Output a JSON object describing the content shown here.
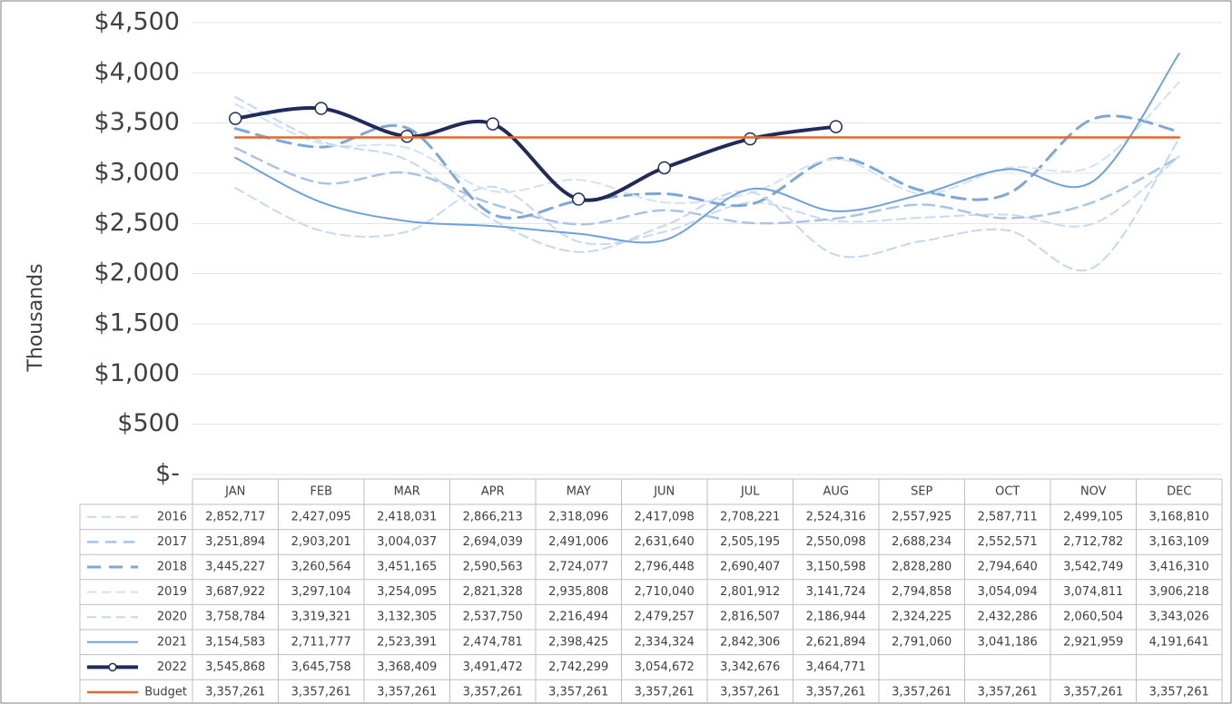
{
  "chart_data": {
    "type": "line",
    "y_label": "Thousands",
    "categories": [
      "JAN",
      "FEB",
      "MAR",
      "APR",
      "MAY",
      "JUN",
      "JUL",
      "AUG",
      "SEP",
      "OCT",
      "NOV",
      "DEC"
    ],
    "ylim": [
      0,
      4500
    ],
    "yticks": [
      {
        "value": 0,
        "label": "$-"
      },
      {
        "value": 500,
        "label": "$500"
      },
      {
        "value": 1000,
        "label": "$1,000"
      },
      {
        "value": 1500,
        "label": "$1,500"
      },
      {
        "value": 2000,
        "label": "$2,000"
      },
      {
        "value": 2500,
        "label": "$2,500"
      },
      {
        "value": 3000,
        "label": "$3,000"
      },
      {
        "value": 3500,
        "label": "$3,500"
      },
      {
        "value": 4000,
        "label": "$4,000"
      },
      {
        "value": 4500,
        "label": "$4,500"
      }
    ],
    "grid": true,
    "smooth": true,
    "series": [
      {
        "name": "2016",
        "color": "#c6daf1",
        "style": "dashed",
        "width": 2,
        "values": [
          2852.717,
          2427.095,
          2418.031,
          2866.213,
          2318.096,
          2417.098,
          2708.221,
          2524.316,
          2557.925,
          2587.711,
          2499.105,
          3168.81
        ],
        "value_labels": [
          "2,852,717",
          "2,427,095",
          "2,418,031",
          "2,866,213",
          "2,318,096",
          "2,417,098",
          "2,708,221",
          "2,524,316",
          "2,557,925",
          "2,587,711",
          "2,499,105",
          "3,168,810"
        ]
      },
      {
        "name": "2017",
        "color": "#a8c5e8",
        "style": "dashed",
        "width": 2.5,
        "values": [
          3251.894,
          2903.201,
          3004.037,
          2694.039,
          2491.006,
          2631.64,
          2505.195,
          2550.098,
          2688.234,
          2552.571,
          2712.782,
          3163.109
        ],
        "value_labels": [
          "3,251,894",
          "2,903,201",
          "3,004,037",
          "2,694,039",
          "2,491,006",
          "2,631,640",
          "2,505,195",
          "2,550,098",
          "2,688,234",
          "2,552,571",
          "2,712,782",
          "3,163,109"
        ]
      },
      {
        "name": "2018",
        "color": "#7ba7da",
        "style": "dashed",
        "width": 3,
        "values": [
          3445.227,
          3260.564,
          3451.165,
          2590.563,
          2724.077,
          2796.448,
          2690.407,
          3150.598,
          2828.28,
          2794.64,
          3542.749,
          3416.31
        ],
        "value_labels": [
          "3,445,227",
          "3,260,564",
          "3,451,165",
          "2,590,563",
          "2,724,077",
          "2,796,448",
          "2,690,407",
          "3,150,598",
          "2,828,280",
          "2,794,640",
          "3,542,749",
          "3,416,310"
        ]
      },
      {
        "name": "2019",
        "color": "#d2e2f4",
        "style": "dashed",
        "width": 2,
        "values": [
          3687.922,
          3297.104,
          3254.095,
          2821.328,
          2935.808,
          2710.04,
          2801.912,
          3141.724,
          2794.858,
          3054.094,
          3074.811,
          3906.218
        ],
        "value_labels": [
          "3,687,922",
          "3,297,104",
          "3,254,095",
          "2,821,328",
          "2,935,808",
          "2,710,040",
          "2,801,912",
          "3,141,724",
          "2,794,858",
          "3,054,094",
          "3,074,811",
          "3,906,218"
        ]
      },
      {
        "name": "2020",
        "color": "#c3d8f0",
        "style": "dashed",
        "width": 2,
        "values": [
          3758.784,
          3319.321,
          3132.305,
          2537.75,
          2216.494,
          2479.257,
          2816.507,
          2186.944,
          2324.225,
          2432.286,
          2060.504,
          3343.026
        ],
        "value_labels": [
          "3,758,784",
          "3,319,321",
          "3,132,305",
          "2,537,750",
          "2,216,494",
          "2,479,257",
          "2,816,507",
          "2,186,944",
          "2,324,225",
          "2,432,286",
          "2,060,504",
          "3,343,026"
        ]
      },
      {
        "name": "2021",
        "color": "#6ea2dd",
        "style": "solid",
        "width": 2,
        "values": [
          3154.583,
          2711.777,
          2523.391,
          2474.781,
          2398.425,
          2334.324,
          2842.306,
          2621.894,
          2791.06,
          3041.186,
          2921.959,
          4191.641
        ],
        "value_labels": [
          "3,154,583",
          "2,711,777",
          "2,523,391",
          "2,474,781",
          "2,398,425",
          "2,334,324",
          "2,842,306",
          "2,621,894",
          "2,791,060",
          "3,041,186",
          "2,921,959",
          "4,191,641"
        ]
      },
      {
        "name": "2022",
        "color": "#1f2b5b",
        "style": "solid",
        "width": 4,
        "markers": true,
        "values": [
          3545.868,
          3645.758,
          3368.409,
          3491.472,
          2742.299,
          3054.672,
          3342.676,
          3464.771,
          null,
          null,
          null,
          null
        ],
        "value_labels": [
          "3,545,868",
          "3,645,758",
          "3,368,409",
          "3,491,472",
          "2,742,299",
          "3,054,672",
          "3,342,676",
          "3,464,771",
          null,
          null,
          null,
          null
        ]
      },
      {
        "name": "Budget",
        "color": "#e4672c",
        "style": "solid",
        "width": 2.5,
        "values": [
          3357.261,
          3357.261,
          3357.261,
          3357.261,
          3357.261,
          3357.261,
          3357.261,
          3357.261,
          3357.261,
          3357.261,
          3357.261,
          3357.261
        ],
        "value_labels": [
          "3,357,261",
          "3,357,261",
          "3,357,261",
          "3,357,261",
          "3,357,261",
          "3,357,261",
          "3,357,261",
          "3,357,261",
          "3,357,261",
          "3,357,261",
          "3,357,261",
          "3,357,261"
        ]
      }
    ]
  }
}
